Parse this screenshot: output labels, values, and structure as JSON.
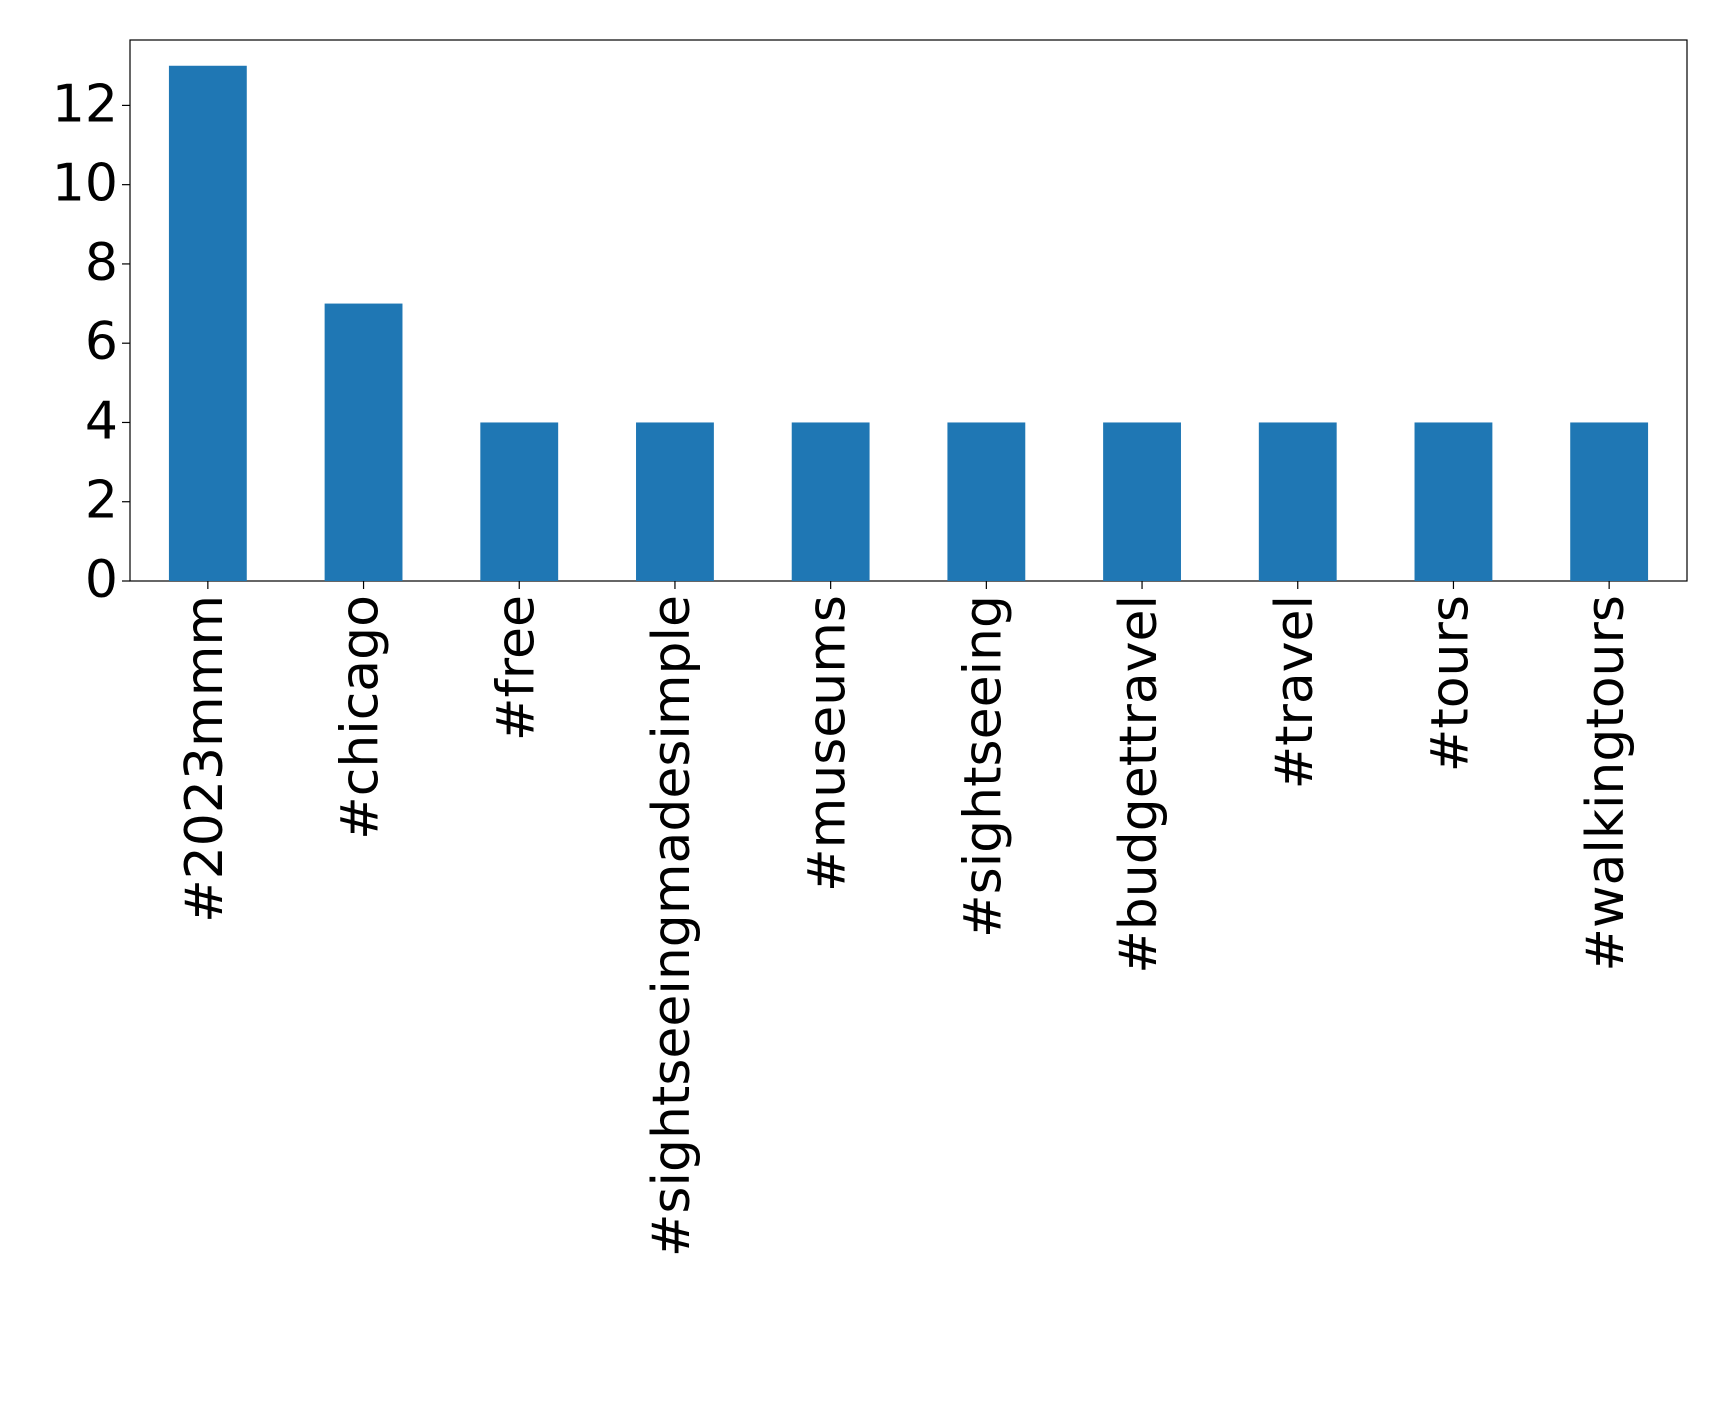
{
  "chart_data": {
    "type": "bar",
    "categories": [
      "#2023mmm",
      "#chicago",
      "#free",
      "#sightseeingmadesimple",
      "#museums",
      "#sightseeing",
      "#budgettravel",
      "#travel",
      "#tours",
      "#walkingtours"
    ],
    "values": [
      13,
      7,
      4,
      4,
      4,
      4,
      4,
      4,
      4,
      4
    ],
    "color": "#1f77b4",
    "ylim": [
      0,
      13.65
    ],
    "yticks": [
      0,
      2,
      4,
      6,
      8,
      10,
      12
    ],
    "grid": false
  }
}
